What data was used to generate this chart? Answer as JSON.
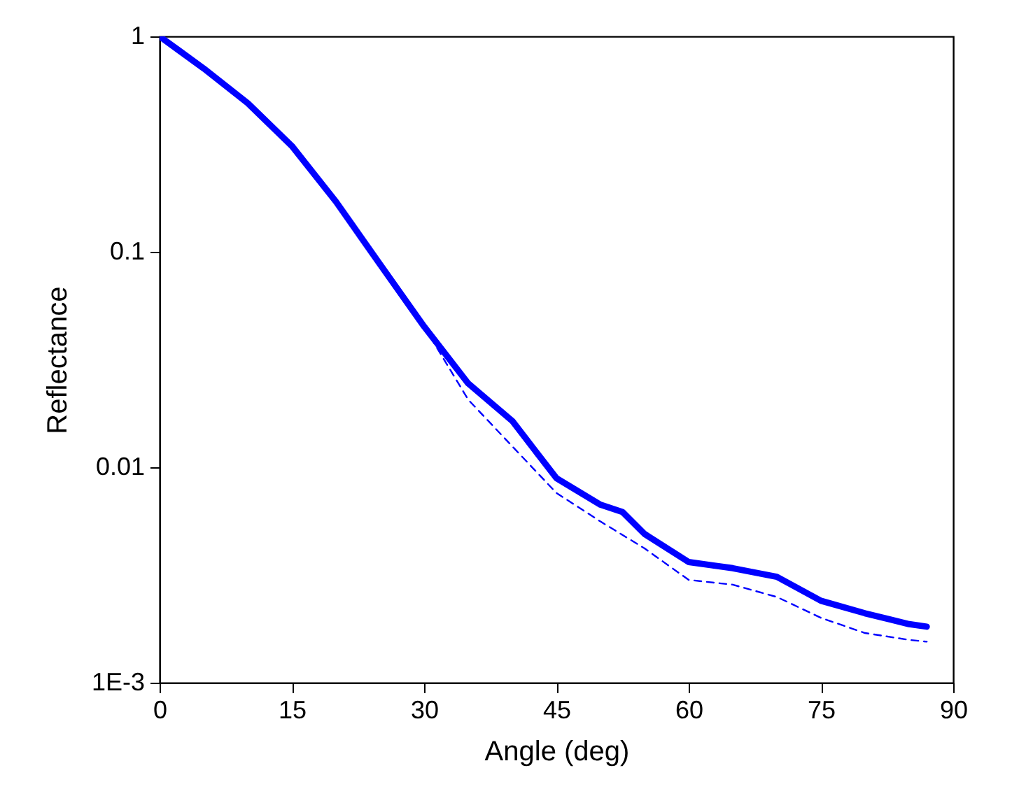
{
  "chart_data": {
    "type": "line",
    "xlabel": "Angle (deg)",
    "ylabel": "Reflectance",
    "log": "y",
    "xlim": [
      0,
      90
    ],
    "xticks": [
      0,
      15,
      30,
      45,
      60,
      75,
      90
    ],
    "ylim": [
      0.001,
      1
    ],
    "yticks": [
      1,
      0.1,
      0.01,
      {
        "value": 0.001,
        "label": "1E-3"
      }
    ],
    "grid": false,
    "marker": "none",
    "series": [
      {
        "color": "#0000ff",
        "line_style": "solid",
        "x": [
          0,
          5,
          10,
          15,
          20,
          25,
          30,
          35,
          40,
          45,
          50,
          52.5,
          55,
          60,
          65,
          70,
          75,
          80,
          85,
          87
        ],
        "values": [
          1,
          0.71,
          0.49,
          0.31,
          0.171,
          0.0875,
          0.045,
          0.0245,
          0.0164,
          0.0089,
          0.0067,
          0.0062,
          0.0049,
          0.00363,
          0.0034,
          0.0031,
          0.0024,
          0.0021,
          0.00187,
          0.00182
        ]
      },
      {
        "color": "#0000ff",
        "line_style": "dashed",
        "x": [
          30,
          35,
          40,
          45,
          50,
          55,
          60,
          65,
          70,
          75,
          80,
          85,
          87
        ],
        "values": [
          0.045,
          0.0206,
          0.0125,
          0.0076,
          0.0056,
          0.0042,
          0.003,
          0.00285,
          0.0025,
          0.002,
          0.0017,
          0.00158,
          0.00155
        ]
      }
    ]
  }
}
